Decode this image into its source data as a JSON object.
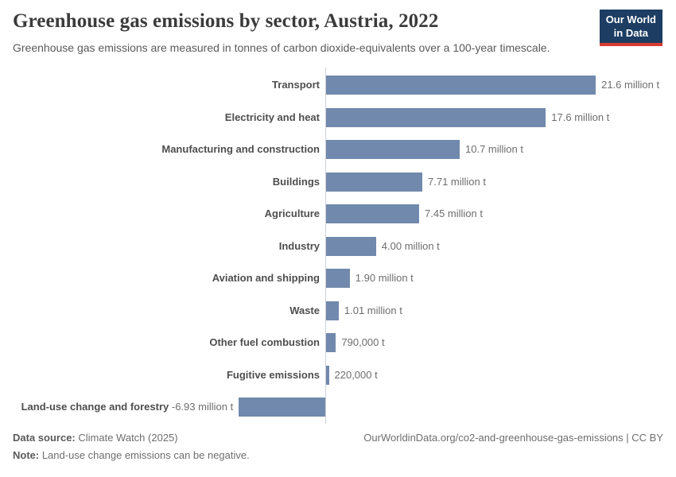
{
  "chart_data": {
    "type": "bar",
    "orientation": "horizontal",
    "title": "Greenhouse gas emissions by sector, Austria, 2022",
    "subtitle": "Greenhouse gas emissions are measured in tonnes of carbon dioxide-equivalents over a 100-year timescale.",
    "unit": "t",
    "grid": false,
    "legend": "none",
    "bar_color": "#7189ac",
    "xlim_million_t": [
      -6.93,
      21.6
    ],
    "rows": [
      {
        "label": "Transport",
        "value_million_t": 21.6,
        "value_label": "21.6 million t"
      },
      {
        "label": "Electricity and heat",
        "value_million_t": 17.6,
        "value_label": "17.6 million t"
      },
      {
        "label": "Manufacturing and construction",
        "value_million_t": 10.7,
        "value_label": "10.7 million t"
      },
      {
        "label": "Buildings",
        "value_million_t": 7.71,
        "value_label": "7.71 million t"
      },
      {
        "label": "Agriculture",
        "value_million_t": 7.45,
        "value_label": "7.45 million t"
      },
      {
        "label": "Industry",
        "value_million_t": 4.0,
        "value_label": "4.00 million t"
      },
      {
        "label": "Aviation and shipping",
        "value_million_t": 1.9,
        "value_label": "1.90 million t"
      },
      {
        "label": "Waste",
        "value_million_t": 1.01,
        "value_label": "1.01 million t"
      },
      {
        "label": "Other fuel combustion",
        "value_million_t": 0.79,
        "value_label": "790,000 t"
      },
      {
        "label": "Fugitive emissions",
        "value_million_t": 0.22,
        "value_label": "220,000 t"
      },
      {
        "label": "Land-use change and forestry",
        "value_million_t": -6.93,
        "value_label": "-6.93 million t"
      }
    ]
  },
  "logo": {
    "line1": "Our World",
    "line2": "in Data",
    "bg_color": "#1d3d63",
    "accent_color": "#d93a32"
  },
  "footer": {
    "data_source_label": "Data source:",
    "data_source_value": "Climate Watch (2025)",
    "note_label": "Note:",
    "note_value": "Land-use change emissions can be negative.",
    "credit": "OurWorldinData.org/co2-and-greenhouse-gas-emissions | CC BY"
  }
}
